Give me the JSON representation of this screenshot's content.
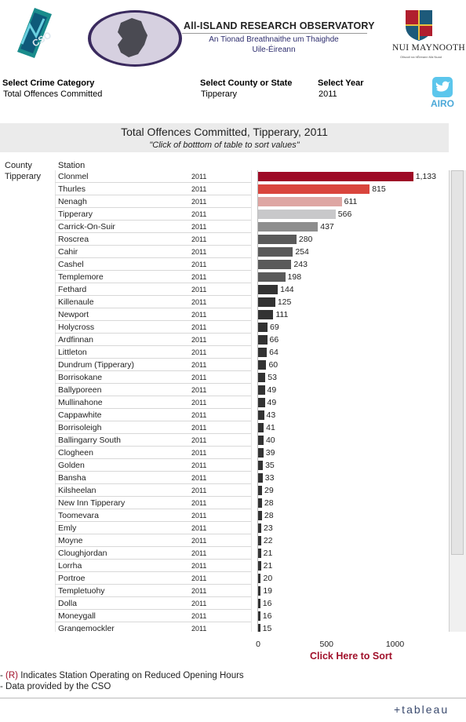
{
  "header": {
    "airo_title": "All-ISLAND RESEARCH OBSERVATORY",
    "airo_sub1": "An Tionad Breathnaithe um Thaighde",
    "airo_sub2": "Uile-Éireann",
    "nuim": "NUI MAYNOOTH",
    "nuim_small": "Ollscoil na hÉireann Má Nuad",
    "cso_logo": "CSO",
    "twitter_label": "AIRO"
  },
  "filters": {
    "category_label": "Select Crime Category",
    "category_value": "Total Offences Committed",
    "county_label": "Select County or State",
    "county_value": "Tipperary",
    "year_label": "Select Year",
    "year_value": "2011"
  },
  "chart_data": {
    "type": "bar",
    "title": "Total Offences Committed, Tipperary, 2011",
    "subtitle": "\"Click of botttom of table to sort values\"",
    "column_headers": [
      "County",
      "Station"
    ],
    "county": "Tipperary",
    "year": "2011",
    "xlim": [
      0,
      1250
    ],
    "xticks": [
      0,
      500,
      1000
    ],
    "categories": [
      "Clonmel",
      "Thurles",
      "Nenagh",
      "Tipperary",
      "Carrick-On-Suir",
      "Roscrea",
      "Cahir",
      "Cashel",
      "Templemore",
      "Fethard",
      "Killenaule",
      "Newport",
      "Holycross",
      "Ardfinnan",
      "Littleton",
      "Dundrum (Tipperary)",
      "Borrisokane",
      "Ballyporeen",
      "Mullinahone",
      "Cappawhite",
      "Borrisoleigh",
      "Ballingarry South",
      "Clogheen",
      "Golden",
      "Bansha",
      "Kilsheelan",
      "New Inn Tipperary",
      "Toomevara",
      "Emly",
      "Moyne",
      "Cloughjordan",
      "Lorrha",
      "Portroe",
      "Templetuohy",
      "Dolla",
      "Moneygall",
      "Grangemockler"
    ],
    "values": [
      1133,
      815,
      611,
      566,
      437,
      280,
      254,
      243,
      198,
      144,
      125,
      111,
      69,
      66,
      64,
      60,
      53,
      49,
      49,
      43,
      41,
      40,
      39,
      35,
      33,
      29,
      28,
      28,
      23,
      22,
      21,
      21,
      20,
      19,
      16,
      16,
      15
    ],
    "value_labels": [
      "1,133",
      "815",
      "611",
      "566",
      "437",
      "280",
      "254",
      "243",
      "198",
      "144",
      "125",
      "111",
      "69",
      "66",
      "64",
      "60",
      "53",
      "49",
      "49",
      "43",
      "41",
      "40",
      "39",
      "35",
      "33",
      "29",
      "28",
      "28",
      "23",
      "22",
      "21",
      "21",
      "20",
      "19",
      "16",
      "16",
      "15"
    ],
    "colors": {
      "top1": "#9e0a26",
      "top2": "#d9453d",
      "top3": "#dea6a3",
      "top4": "#c8c8ca",
      "top5": "#8e8e8e",
      "mid": "#5a5a5a",
      "rest": "#333333"
    }
  },
  "controls": {
    "sort_link": "Click Here to Sort"
  },
  "footer": {
    "note1_prefix": "- ",
    "note1_r": "(R)",
    "note1_rest": " Indicates Station Operating on Reduced Opening Hours",
    "note2": "- Data provided by the CSO",
    "tableau": "+tableau"
  }
}
